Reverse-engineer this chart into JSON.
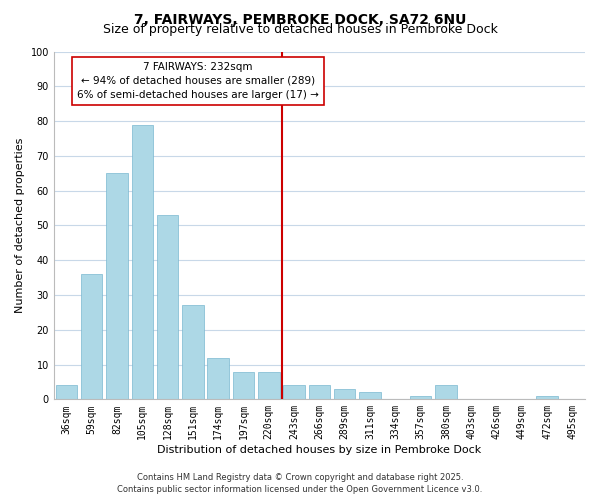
{
  "title": "7, FAIRWAYS, PEMBROKE DOCK, SA72 6NU",
  "subtitle": "Size of property relative to detached houses in Pembroke Dock",
  "xlabel": "Distribution of detached houses by size in Pembroke Dock",
  "ylabel": "Number of detached properties",
  "bar_labels": [
    "36sqm",
    "59sqm",
    "82sqm",
    "105sqm",
    "128sqm",
    "151sqm",
    "174sqm",
    "197sqm",
    "220sqm",
    "243sqm",
    "266sqm",
    "289sqm",
    "311sqm",
    "334sqm",
    "357sqm",
    "380sqm",
    "403sqm",
    "426sqm",
    "449sqm",
    "472sqm",
    "495sqm"
  ],
  "bar_values": [
    4,
    36,
    65,
    79,
    53,
    27,
    12,
    8,
    8,
    4,
    4,
    3,
    2,
    0,
    1,
    4,
    0,
    0,
    0,
    1,
    0
  ],
  "bar_color": "#add8e6",
  "bar_edge_color": "#7ab8d0",
  "vline_color": "#cc0000",
  "annotation_title": "7 FAIRWAYS: 232sqm",
  "annotation_line1": "← 94% of detached houses are smaller (289)",
  "annotation_line2": "6% of semi-detached houses are larger (17) →",
  "annotation_box_color": "#ffffff",
  "annotation_box_edge": "#cc0000",
  "ylim": [
    0,
    100
  ],
  "yticks": [
    0,
    10,
    20,
    30,
    40,
    50,
    60,
    70,
    80,
    90,
    100
  ],
  "footer1": "Contains HM Land Registry data © Crown copyright and database right 2025.",
  "footer2": "Contains public sector information licensed under the Open Government Licence v3.0.",
  "bg_color": "#ffffff",
  "grid_color": "#c8d8e8",
  "title_fontsize": 10,
  "subtitle_fontsize": 9,
  "tick_fontsize": 7,
  "ylabel_fontsize": 8,
  "xlabel_fontsize": 8,
  "footer_fontsize": 6,
  "annotation_fontsize": 7.5
}
